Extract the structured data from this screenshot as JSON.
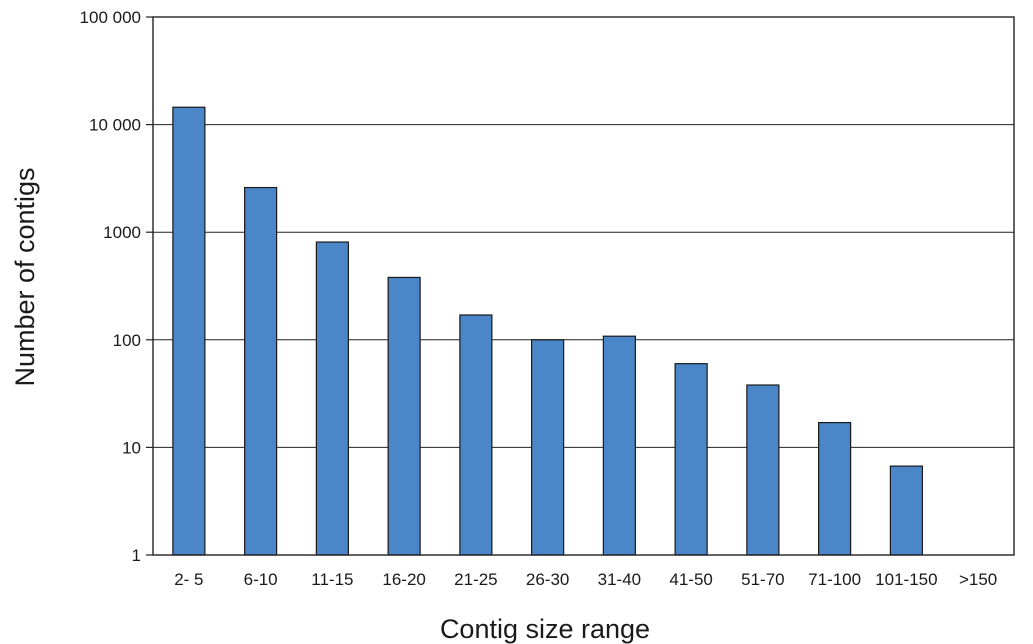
{
  "chart_data": {
    "type": "bar",
    "title": "",
    "xlabel": "Contig size range",
    "ylabel": "Number of contigs",
    "y_scale": "log",
    "ylim": [
      1,
      100000
    ],
    "y_ticks": [
      1,
      10,
      100,
      1000,
      10000,
      100000
    ],
    "y_tick_labels": [
      "1",
      "10",
      "100",
      "1000",
      "10 000",
      "100 000"
    ],
    "grid": "horizontal",
    "legend": "none",
    "categories": [
      "2- 5",
      "6-10",
      "11-15",
      "16-20",
      "21-25",
      "26-30",
      "31-40",
      "41-50",
      "51-70",
      "71-100",
      "101-150",
      ">150"
    ],
    "series": [
      {
        "values": [
          14500,
          2600,
          810,
          380,
          170,
          100,
          108,
          60,
          38,
          17,
          6.7,
          null
        ],
        "color": "#4a86c8"
      }
    ]
  }
}
